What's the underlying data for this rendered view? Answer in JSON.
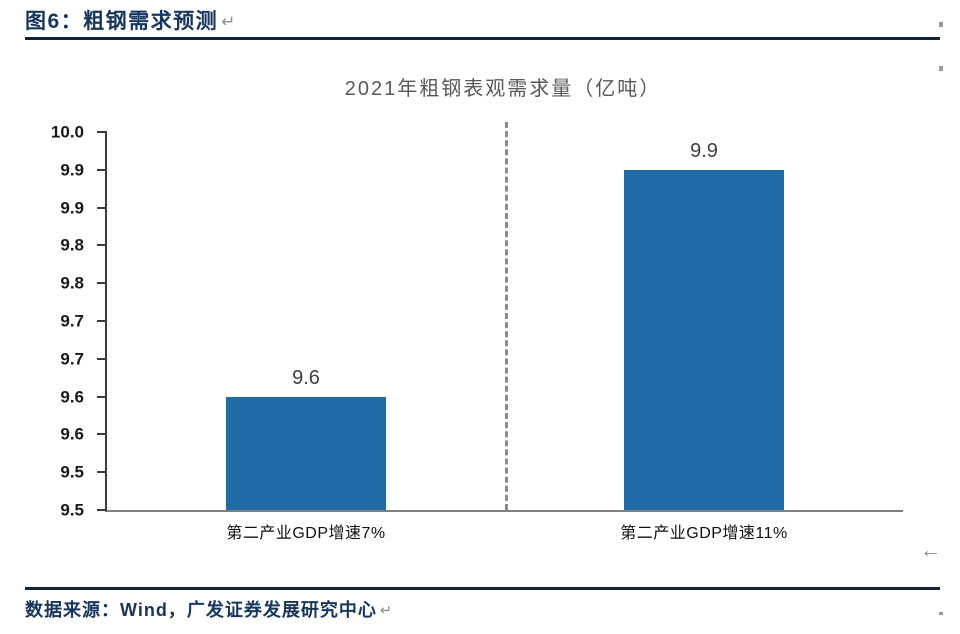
{
  "header": {
    "figure_title": "图6：粗钢需求预测",
    "return_mark": "↵"
  },
  "chart_data": {
    "type": "bar",
    "title": "2021年粗钢表观需求量（亿吨）",
    "categories": [
      "第二产业GDP增速7%",
      "第二产业GDP增速11%"
    ],
    "values": [
      9.65,
      9.95
    ],
    "value_labels": [
      "9.6",
      "9.9"
    ],
    "ylim": [
      9.5,
      10.0
    ],
    "ytick_labels_top_to_bottom": [
      "10.0",
      "9.9",
      "9.9",
      "9.8",
      "9.8",
      "9.7",
      "9.7",
      "9.6",
      "9.6",
      "9.5",
      "9.5"
    ],
    "grid": false,
    "legend_position": "none",
    "bar_color": "#1f6ba6",
    "has_center_dashed_divider": true
  },
  "footer": {
    "source_text": "数据来源：Wind，广发证券发展研究中心",
    "return_mark": "↵"
  },
  "decorations": {
    "right_return_arrow": "←"
  },
  "colors": {
    "heading_text": "#17365d",
    "rule": "#14233c",
    "chart_title_text": "#595959",
    "bar_fill": "#1f6ba6",
    "y_axis_line": "#3c3c3c",
    "x_axis_line": "#7f7f7f",
    "tick_text": "#1a1a1a",
    "value_label_text": "#3f3f3f",
    "divider_dash": "#8c8c8c",
    "return_mark": "#8f8f8f"
  }
}
